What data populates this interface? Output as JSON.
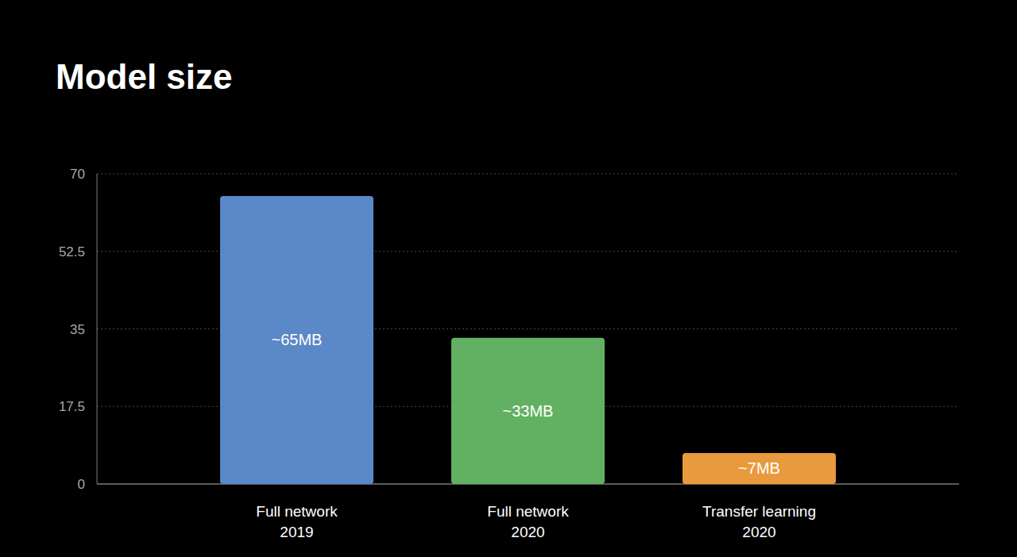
{
  "chart_data": {
    "type": "bar",
    "title": "Model size",
    "categories": [
      "Full network\n2019",
      "Full network\n2020",
      "Transfer learning\n2020"
    ],
    "values": [
      65,
      33,
      7
    ],
    "value_labels": [
      "~65MB",
      "~33MB",
      "~7MB"
    ],
    "colors": [
      "#5b88c6",
      "#62b163",
      "#e99a3c"
    ],
    "ylim": [
      0,
      70
    ],
    "yticks": [
      0,
      17.5,
      35,
      52.5,
      70
    ],
    "grid": true,
    "data_labels": true
  }
}
